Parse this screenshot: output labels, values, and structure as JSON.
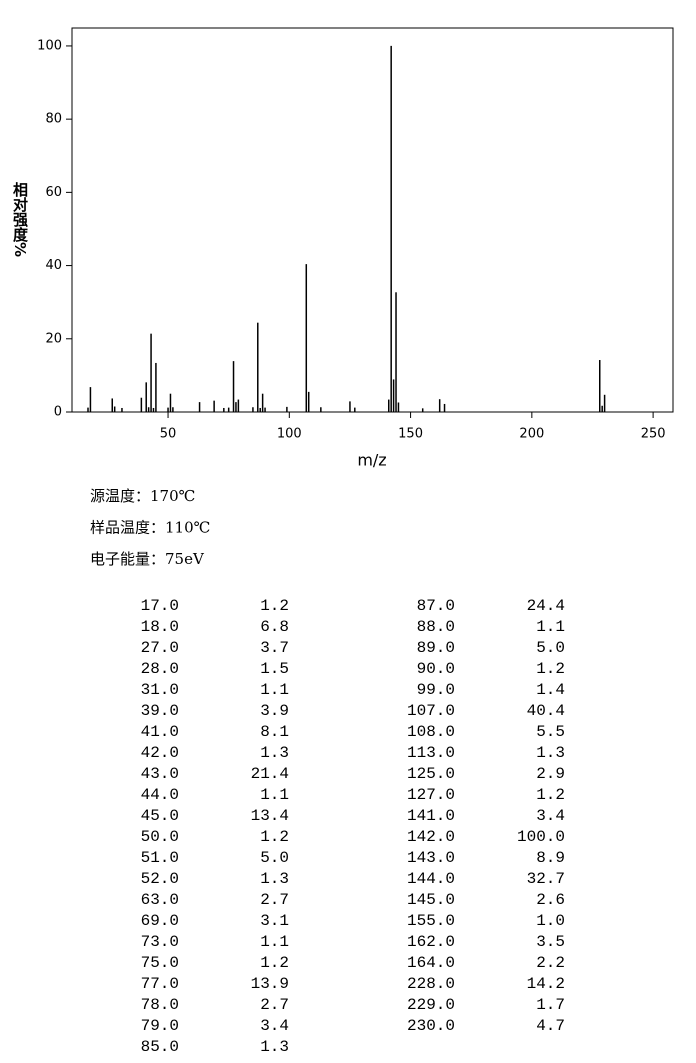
{
  "chart_data": {
    "type": "stem",
    "x_label": "m/z",
    "y_label": "相对强度%",
    "x": [
      17,
      18,
      27,
      28,
      31,
      39,
      41,
      42,
      43,
      44,
      45,
      50,
      51,
      52,
      63,
      69,
      73,
      75,
      77,
      78,
      79,
      85,
      87,
      88,
      89,
      90,
      99,
      107,
      108,
      113,
      125,
      127,
      141,
      142,
      143,
      144,
      145,
      155,
      162,
      164,
      228,
      229,
      230
    ],
    "values": [
      1.2,
      6.8,
      3.7,
      1.5,
      1.1,
      3.9,
      8.1,
      1.3,
      21.4,
      1.1,
      13.4,
      1.2,
      5.0,
      1.3,
      2.7,
      3.1,
      1.1,
      1.2,
      13.9,
      2.7,
      3.4,
      1.3,
      24.4,
      1.1,
      5.0,
      1.2,
      1.4,
      40.4,
      5.5,
      1.3,
      2.9,
      1.2,
      3.4,
      100,
      8.9,
      32.7,
      2.6,
      1.0,
      3.5,
      2.2,
      14.2,
      1.7,
      4.7
    ],
    "color": "#000000",
    "xlim": [
      10.4,
      258.2
    ],
    "xticks": [
      50,
      100,
      150,
      200,
      250
    ],
    "ylim": [
      0,
      104.9
    ],
    "yticks": [
      0,
      20,
      40,
      60,
      80,
      100
    ]
  },
  "info": [
    "源温度：170℃",
    "样品温度：110℃",
    "电子能量：75eV"
  ],
  "table": {
    "rows": [
      [
        "17.0",
        "1.2"
      ],
      [
        "18.0",
        "6.8"
      ],
      [
        "27.0",
        "3.7"
      ],
      [
        "28.0",
        "1.5"
      ],
      [
        "31.0",
        "1.1"
      ],
      [
        "39.0",
        "3.9"
      ],
      [
        "41.0",
        "8.1"
      ],
      [
        "42.0",
        "1.3"
      ],
      [
        "43.0",
        "21.4"
      ],
      [
        "44.0",
        "1.1"
      ],
      [
        "45.0",
        "13.4"
      ],
      [
        "50.0",
        "1.2"
      ],
      [
        "51.0",
        "5.0"
      ],
      [
        "52.0",
        "1.3"
      ],
      [
        "63.0",
        "2.7"
      ],
      [
        "69.0",
        "3.1"
      ],
      [
        "73.0",
        "1.1"
      ],
      [
        "75.0",
        "1.2"
      ],
      [
        "77.0",
        "13.9"
      ],
      [
        "78.0",
        "2.7"
      ],
      [
        "79.0",
        "3.4"
      ],
      [
        "85.0",
        "1.3"
      ],
      [
        "87.0",
        "24.4"
      ],
      [
        "88.0",
        "1.1"
      ],
      [
        "89.0",
        "5.0"
      ],
      [
        "90.0",
        "1.2"
      ],
      [
        "99.0",
        "1.4"
      ],
      [
        "107.0",
        "40.4"
      ],
      [
        "108.0",
        "5.5"
      ],
      [
        "113.0",
        "1.3"
      ],
      [
        "125.0",
        "2.9"
      ],
      [
        "127.0",
        "1.2"
      ],
      [
        "141.0",
        "3.4"
      ],
      [
        "142.0",
        "100.0"
      ],
      [
        "143.0",
        "8.9"
      ],
      [
        "144.0",
        "32.7"
      ],
      [
        "145.0",
        "2.6"
      ],
      [
        "155.0",
        "1.0"
      ],
      [
        "162.0",
        "3.5"
      ],
      [
        "164.0",
        "2.2"
      ],
      [
        "228.0",
        "14.2"
      ],
      [
        "229.0",
        "1.7"
      ],
      [
        "230.0",
        "4.7"
      ]
    ]
  }
}
